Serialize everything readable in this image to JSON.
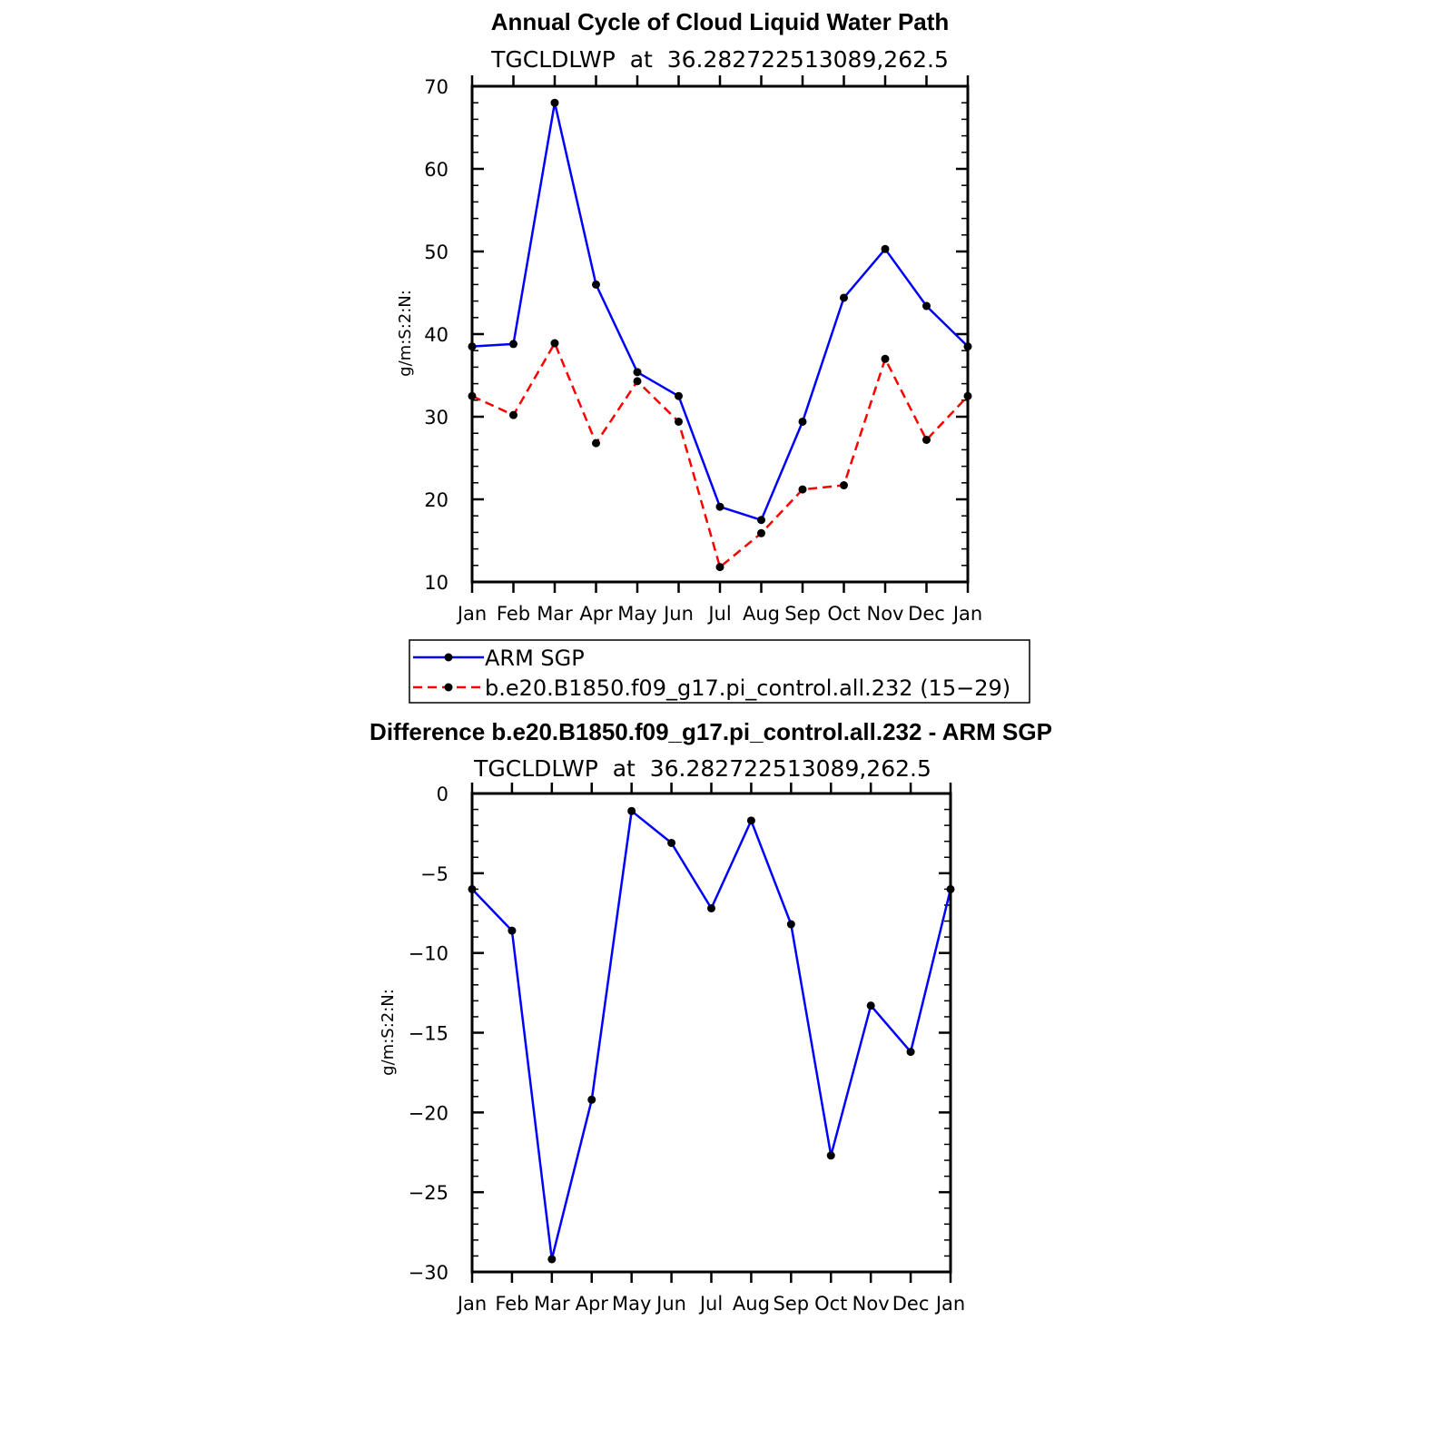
{
  "chart_data": [
    {
      "type": "line",
      "title": "Annual Cycle of Cloud Liquid Water Path",
      "subtitle": "TGCLDLWP  at  36.282722513089,262.5",
      "xlabel": "",
      "ylabel": "g/m:S:2:N:",
      "categories": [
        "Jan",
        "Feb",
        "Mar",
        "Apr",
        "May",
        "Jun",
        "Jul",
        "Aug",
        "Sep",
        "Oct",
        "Nov",
        "Dec",
        "Jan"
      ],
      "ylim": [
        10,
        70
      ],
      "yticks": [
        10,
        20,
        30,
        40,
        50,
        60,
        70
      ],
      "legend_position": "below",
      "series": [
        {
          "name": "ARM SGP",
          "color": "#0000ff",
          "dash": "solid",
          "values": [
            38.5,
            38.8,
            68.0,
            46.0,
            35.4,
            32.5,
            19.1,
            17.5,
            29.4,
            44.4,
            50.3,
            43.4,
            38.5
          ]
        },
        {
          "name": "b.e20.B1850.f09_g17.pi_control.all.232 (15−29)",
          "color": "#ff0000",
          "dash": "dashed",
          "values": [
            32.5,
            30.2,
            38.9,
            26.8,
            34.3,
            29.4,
            11.8,
            15.9,
            21.2,
            21.7,
            37.0,
            27.2,
            32.5
          ]
        }
      ]
    },
    {
      "type": "line",
      "title": "Difference b.e20.B1850.f09_g17.pi_control.all.232 - ARM SGP",
      "subtitle": "TGCLDLWP  at  36.282722513089,262.5",
      "xlabel": "",
      "ylabel": "g/m:S:2:N:",
      "categories": [
        "Jan",
        "Feb",
        "Mar",
        "Apr",
        "May",
        "Jun",
        "Jul",
        "Aug",
        "Sep",
        "Oct",
        "Nov",
        "Dec",
        "Jan"
      ],
      "ylim": [
        -30,
        0
      ],
      "yticks": [
        0,
        -5,
        -10,
        -15,
        -20,
        -25,
        -30
      ],
      "series": [
        {
          "name": "",
          "color": "#0000ff",
          "dash": "solid",
          "values": [
            -6.0,
            -8.6,
            -29.2,
            -19.2,
            -1.1,
            -3.1,
            -7.2,
            -1.7,
            -8.2,
            -22.7,
            -13.3,
            -16.2,
            -6.0
          ]
        }
      ]
    }
  ]
}
